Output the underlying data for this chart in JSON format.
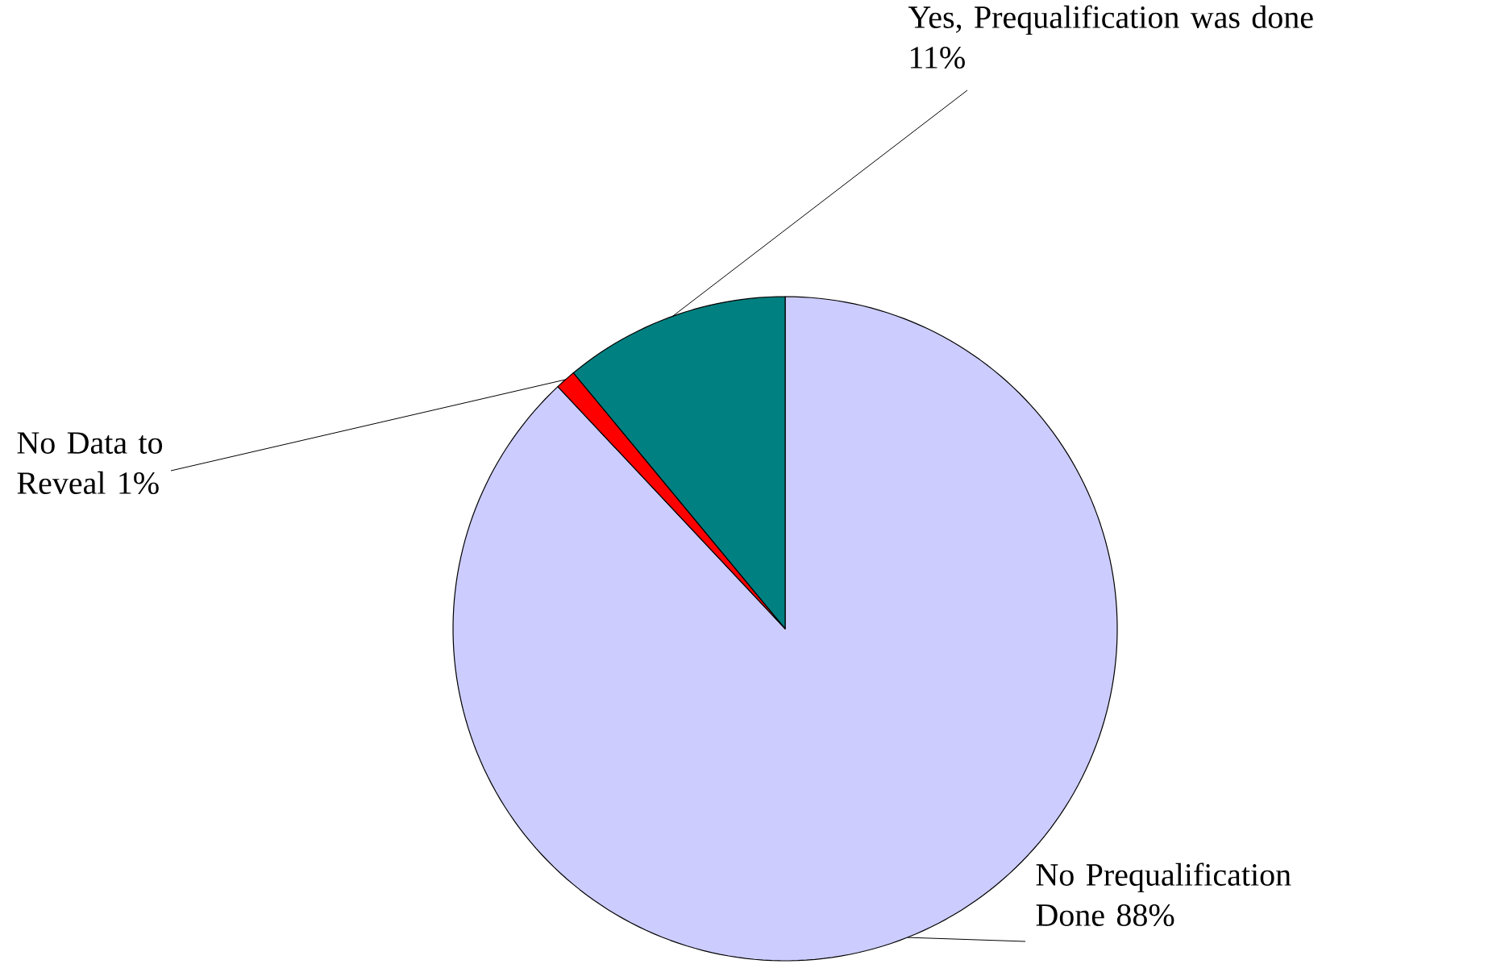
{
  "chart_data": {
    "type": "pie",
    "categories": [
      "No Prequalification Done",
      "No Data to Reveal",
      "Yes, Prequalification was done"
    ],
    "values": [
      88,
      1,
      11
    ],
    "value_labels": [
      "88%",
      "1%",
      "11%"
    ],
    "colors": [
      "#ccccff",
      "#ff0000",
      "#008080"
    ]
  }
}
